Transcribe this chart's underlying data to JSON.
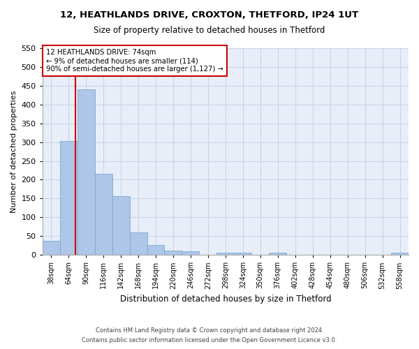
{
  "title1": "12, HEATHLANDS DRIVE, CROXTON, THETFORD, IP24 1UT",
  "title2": "Size of property relative to detached houses in Thetford",
  "xlabel": "Distribution of detached houses by size in Thetford",
  "ylabel": "Number of detached properties",
  "footnote1": "Contains HM Land Registry data © Crown copyright and database right 2024.",
  "footnote2": "Contains public sector information licensed under the Open Government Licence v3.0.",
  "bar_labels": [
    "38sqm",
    "64sqm",
    "90sqm",
    "116sqm",
    "142sqm",
    "168sqm",
    "194sqm",
    "220sqm",
    "246sqm",
    "272sqm",
    "298sqm",
    "324sqm",
    "350sqm",
    "376sqm",
    "402sqm",
    "428sqm",
    "454sqm",
    "480sqm",
    "506sqm",
    "532sqm",
    "558sqm"
  ],
  "bar_values": [
    37,
    303,
    440,
    216,
    157,
    59,
    26,
    12,
    9,
    0,
    5,
    5,
    0,
    5,
    0,
    0,
    0,
    0,
    0,
    0,
    5
  ],
  "bar_color": "#aec6e8",
  "bar_edge_color": "#7aaad0",
  "grid_color": "#c8d4e8",
  "background_color": "#e8eef8",
  "marker_label": "12 HEATHLANDS DRIVE: 74sqm",
  "annotation_line1": "← 9% of detached houses are smaller (114)",
  "annotation_line2": "90% of semi-detached houses are larger (1,127) →",
  "annotation_box_color": "#cc0000",
  "ylim": [
    0,
    550
  ],
  "yticks": [
    0,
    50,
    100,
    150,
    200,
    250,
    300,
    350,
    400,
    450,
    500,
    550
  ]
}
